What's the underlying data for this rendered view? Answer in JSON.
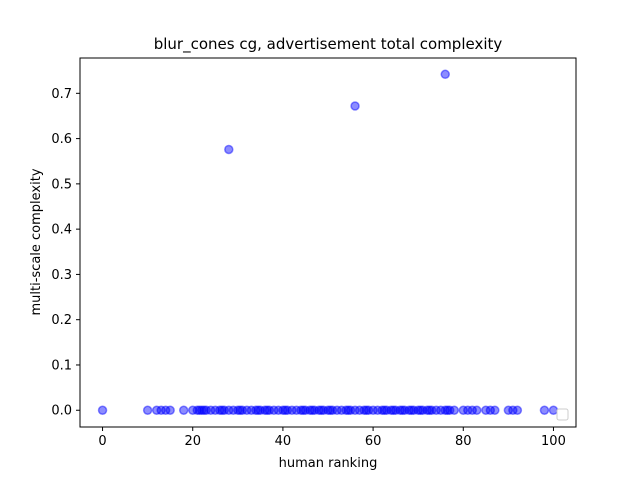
{
  "chart_data": {
    "type": "scatter",
    "title": "blur_cones cg, advertisement total complexity",
    "xlabel": "human ranking",
    "ylabel": "multi-scale complexity",
    "xlim": [
      -5,
      105
    ],
    "ylim": [
      -0.037,
      0.778
    ],
    "xticks": [
      0,
      20,
      40,
      60,
      80,
      100
    ],
    "yticks": [
      0.0,
      0.1,
      0.2,
      0.3,
      0.4,
      0.5,
      0.6,
      0.7
    ],
    "grid": false,
    "legend": "lower-right (empty)",
    "marker_color": "#0000ff",
    "marker_alpha": 0.5,
    "series": [
      {
        "points": [
          [
            28,
            0.576
          ],
          [
            56,
            0.672
          ],
          [
            76,
            0.742
          ],
          [
            0,
            0.0
          ],
          [
            10,
            0.0
          ],
          [
            12,
            0.0
          ],
          [
            13,
            0.0
          ],
          [
            14,
            0.0
          ],
          [
            15,
            0.0
          ],
          [
            18,
            0.0
          ],
          [
            20,
            0.0
          ],
          [
            21,
            0.0
          ],
          [
            22,
            0.0
          ],
          [
            23,
            0.0
          ],
          [
            24,
            0.0
          ],
          [
            25,
            0.0
          ],
          [
            26,
            0.0
          ],
          [
            27,
            0.0
          ],
          [
            28,
            0.0
          ],
          [
            29,
            0.0
          ],
          [
            30,
            0.0
          ],
          [
            31,
            0.0
          ],
          [
            32,
            0.0
          ],
          [
            33,
            0.0
          ],
          [
            34,
            0.0
          ],
          [
            35,
            0.0
          ],
          [
            36,
            0.0
          ],
          [
            37,
            0.0
          ],
          [
            38,
            0.0
          ],
          [
            39,
            0.0
          ],
          [
            40,
            0.0
          ],
          [
            41,
            0.0
          ],
          [
            42,
            0.0
          ],
          [
            43,
            0.0
          ],
          [
            44,
            0.0
          ],
          [
            45,
            0.0
          ],
          [
            46,
            0.0
          ],
          [
            47,
            0.0
          ],
          [
            48,
            0.0
          ],
          [
            49,
            0.0
          ],
          [
            50,
            0.0
          ],
          [
            51,
            0.0
          ],
          [
            52,
            0.0
          ],
          [
            53,
            0.0
          ],
          [
            54,
            0.0
          ],
          [
            55,
            0.0
          ],
          [
            56,
            0.0
          ],
          [
            57,
            0.0
          ],
          [
            58,
            0.0
          ],
          [
            59,
            0.0
          ],
          [
            60,
            0.0
          ],
          [
            61,
            0.0
          ],
          [
            62,
            0.0
          ],
          [
            63,
            0.0
          ],
          [
            64,
            0.0
          ],
          [
            65,
            0.0
          ],
          [
            66,
            0.0
          ],
          [
            67,
            0.0
          ],
          [
            68,
            0.0
          ],
          [
            69,
            0.0
          ],
          [
            70,
            0.0
          ],
          [
            71,
            0.0
          ],
          [
            72,
            0.0
          ],
          [
            73,
            0.0
          ],
          [
            74,
            0.0
          ],
          [
            75,
            0.0
          ],
          [
            76,
            0.0
          ],
          [
            77,
            0.0
          ],
          [
            78,
            0.0
          ],
          [
            80,
            0.0
          ],
          [
            81,
            0.0
          ],
          [
            82,
            0.0
          ],
          [
            83,
            0.0
          ],
          [
            85,
            0.0
          ],
          [
            86,
            0.0
          ],
          [
            87,
            0.0
          ],
          [
            90,
            0.0
          ],
          [
            91,
            0.0
          ],
          [
            92,
            0.0
          ],
          [
            98,
            0.0
          ],
          [
            100,
            0.0
          ],
          [
            22.5,
            0.0
          ],
          [
            26.5,
            0.0
          ],
          [
            30.5,
            0.0
          ],
          [
            36.5,
            0.0
          ],
          [
            40.5,
            0.0
          ],
          [
            46.5,
            0.0
          ],
          [
            50.5,
            0.0
          ],
          [
            54.5,
            0.0
          ],
          [
            58.5,
            0.0
          ],
          [
            62.5,
            0.0
          ],
          [
            66.5,
            0.0
          ],
          [
            68.5,
            0.0
          ],
          [
            70.5,
            0.0
          ],
          [
            72.5,
            0.0
          ],
          [
            76.5,
            0.0
          ],
          [
            21.5,
            0.0
          ],
          [
            34.5,
            0.0
          ],
          [
            44.5,
            0.0
          ],
          [
            48.5,
            0.0
          ],
          [
            64.5,
            0.0
          ]
        ]
      }
    ]
  }
}
